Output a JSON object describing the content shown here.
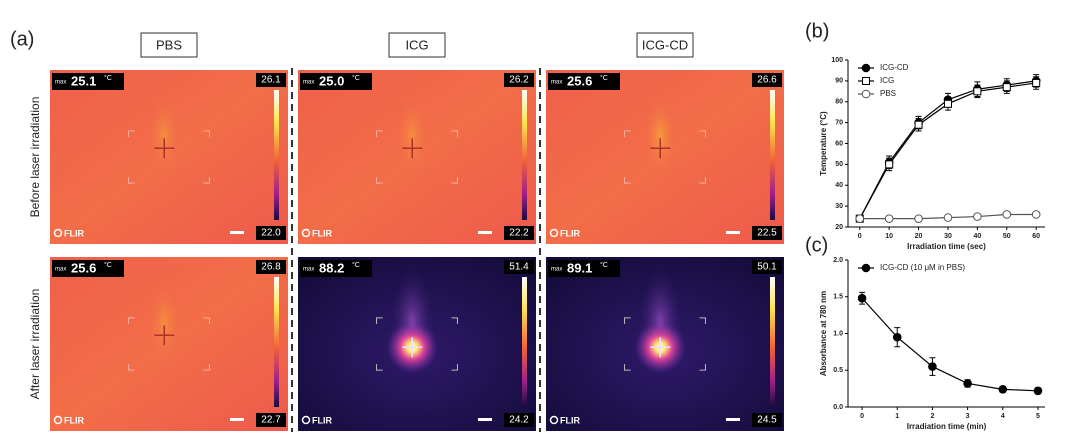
{
  "figure": {
    "panel_labels": [
      "(a)",
      "(b)",
      "(c)"
    ],
    "columns": [
      "PBS",
      "ICG",
      "ICG-CD"
    ],
    "rows": [
      "Before laser irradiation",
      "After laser irradiation"
    ],
    "images": [
      [
        {
          "max_label": "max",
          "max": "25.1",
          "unit": "°C",
          "scale_max": "26.1",
          "scale_min": "22.0",
          "logo": "FLIR"
        },
        {
          "max_label": "max",
          "max": "25.0",
          "unit": "°C",
          "scale_max": "26.2",
          "scale_min": "22.2",
          "logo": "FLIR"
        },
        {
          "max_label": "max",
          "max": "25.6",
          "unit": "°C",
          "scale_max": "26.6",
          "scale_min": "22.5",
          "logo": "FLIR"
        }
      ],
      [
        {
          "max_label": "max",
          "max": "25.6",
          "unit": "°C",
          "scale_max": "26.8",
          "scale_min": "22.7",
          "logo": "FLIR"
        },
        {
          "max_label": "max",
          "max": "88.2",
          "unit": "°C",
          "scale_max": "51.4",
          "scale_min": "24.2",
          "logo": "FLIR"
        },
        {
          "max_label": "max",
          "max": "89.1",
          "unit": "°C",
          "scale_max": "50.1",
          "scale_min": "24.5",
          "logo": "FLIR"
        }
      ]
    ]
  },
  "chart_data": [
    {
      "type": "line",
      "xlabel": "Irradiation time (sec)",
      "ylabel": "Temperature (°C)",
      "x": [
        0,
        10,
        20,
        30,
        40,
        50,
        60
      ],
      "xlim": [
        -4,
        63
      ],
      "xticks": [
        0,
        10,
        20,
        30,
        40,
        50,
        60
      ],
      "ylim": [
        20,
        100
      ],
      "yticks": [
        20,
        30,
        40,
        50,
        60,
        70,
        80,
        90,
        100
      ],
      "legend": "upper-left",
      "series": [
        {
          "name": "ICG-CD",
          "color": "#000000",
          "marker": "filled-circle",
          "values": [
            24,
            51,
            70,
            81,
            86,
            88,
            90
          ],
          "errors": [
            1.5,
            3,
            3,
            3,
            3.5,
            3,
            3
          ]
        },
        {
          "name": "ICG",
          "color": "#000000",
          "marker": "open-square",
          "values": [
            24,
            50,
            69,
            79,
            85,
            87,
            89
          ],
          "errors": [
            1.5,
            3,
            3,
            3,
            3,
            3,
            3
          ]
        },
        {
          "name": "PBS",
          "color": "#555555",
          "marker": "open-circle",
          "values": [
            24,
            24,
            24,
            24.5,
            25,
            26,
            26
          ]
        }
      ]
    },
    {
      "type": "line",
      "xlabel": "Irradiation time (min)",
      "ylabel": "Absorbance at 780 nm",
      "x": [
        0,
        1,
        2,
        3,
        4,
        5
      ],
      "xlim": [
        -0.4,
        5.2
      ],
      "xticks": [
        0,
        1,
        2,
        3,
        4,
        5
      ],
      "ylim": [
        0,
        2
      ],
      "yticks": [
        {
          "value": 0,
          "label": "0.0"
        },
        {
          "value": 0.5,
          "label": "0.5"
        },
        {
          "value": 1,
          "label": "1.0"
        },
        {
          "value": 1.5,
          "label": "1.5"
        },
        {
          "value": 2,
          "label": "2.0"
        }
      ],
      "legend": "upper-left",
      "series": [
        {
          "name": "ICG-CD (10 μM in PBS)",
          "color": "#000000",
          "marker": "filled-circle",
          "values": [
            1.48,
            0.95,
            0.55,
            0.32,
            0.24,
            0.22
          ],
          "errors": [
            0.08,
            0.13,
            0.12,
            0.05,
            0.04,
            0.04
          ]
        }
      ]
    }
  ]
}
